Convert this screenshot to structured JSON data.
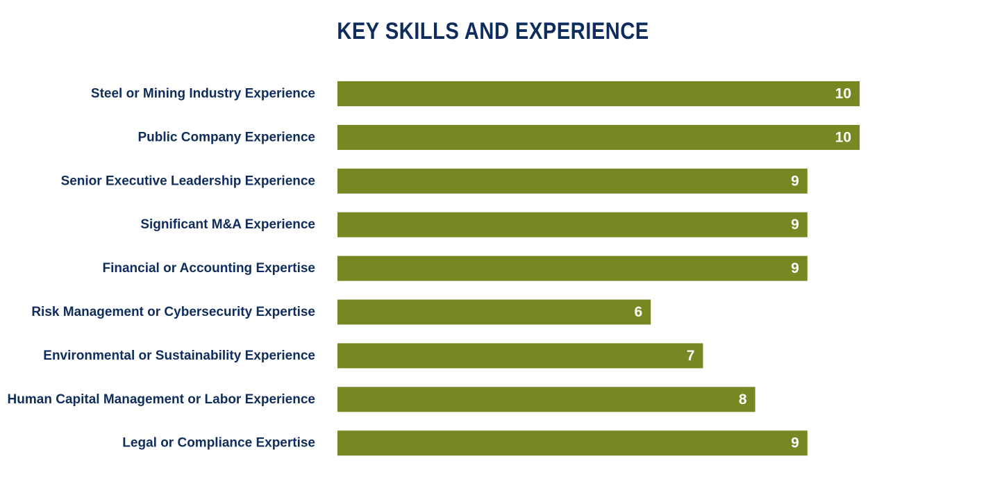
{
  "chart_data": {
    "type": "bar",
    "orientation": "horizontal",
    "title": "KEY SKILLS AND EXPERIENCE",
    "categories": [
      "Steel or Mining Industry Experience",
      "Public Company Experience",
      "Senior Executive Leadership Experience",
      "Significant M&A Experience",
      "Financial or Accounting Expertise",
      "Risk Management or Cybersecurity Expertise",
      "Environmental or Sustainability Experience",
      "Human Capital Management or Labor Experience",
      "Legal or Compliance Expertise"
    ],
    "values": [
      10,
      10,
      9,
      9,
      9,
      6,
      7,
      8,
      9
    ],
    "data_labels": [
      "10",
      "10",
      "9",
      "9",
      "9",
      "6",
      "7",
      "8",
      "9"
    ],
    "xlim": [
      0,
      10
    ],
    "grid": false,
    "legend": "none",
    "bar_color": "#778823",
    "label_color": "#0f2d5c",
    "value_label_color": "#ffffff"
  }
}
